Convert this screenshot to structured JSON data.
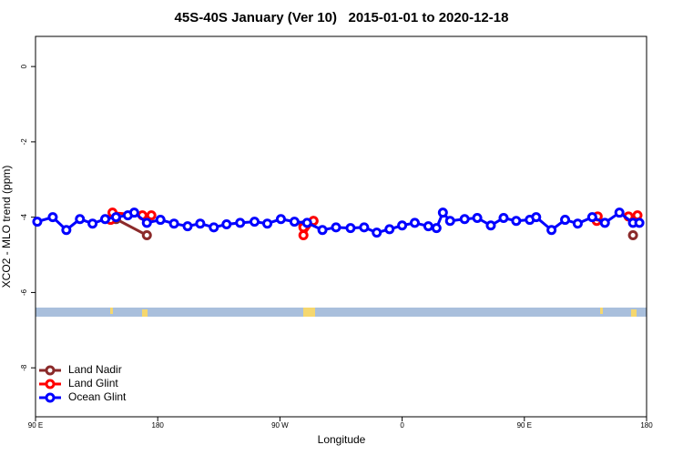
{
  "chart_data": {
    "type": "line",
    "title": "45S-40S January (Ver 10)   2015-01-01 to 2020-12-18",
    "x_label": "Longitude",
    "y_label": "XCO2 - MLO trend (ppm)",
    "xlim": [
      90,
      540
    ],
    "ylim": [
      -9.3,
      0.8
    ],
    "xticks": [
      {
        "value": 90,
        "label": "90 E"
      },
      {
        "value": 180,
        "label": "180"
      },
      {
        "value": 270,
        "label": "90 W"
      },
      {
        "value": 360,
        "label": "0"
      },
      {
        "value": 450,
        "label": "90 E"
      },
      {
        "value": 540,
        "label": "180"
      }
    ],
    "yticks": [
      0,
      -2,
      -4,
      -6,
      -8
    ],
    "legend": "bottom-left",
    "series": [
      {
        "name": "Land Nadir",
        "color": "#8b2a2a",
        "x": [
          149.3,
          172,
          null,
          287.3,
          294.7,
          null,
          530
        ],
        "values": [
          -4.05,
          -4.48,
          null,
          -4.22,
          -4.1,
          null,
          -4.48
        ]
      },
      {
        "name": "Land Glint",
        "color": "#ff0000",
        "x": [
          145.3,
          146.7,
          168.7,
          175.3,
          null,
          287.3,
          287.3,
          294.7,
          null,
          503.3,
          504,
          null,
          526.7,
          533.3
        ],
        "values": [
          -4.07,
          -3.88,
          -3.95,
          -3.95,
          null,
          -4.27,
          -4.48,
          -4.1,
          null,
          -4.1,
          -3.98,
          null,
          -3.98,
          -3.95
        ]
      },
      {
        "name": "Ocean Glint",
        "color": "#0000ff",
        "x": [
          91.3,
          102.7,
          112.7,
          122.7,
          132,
          141.3,
          149.3,
          158,
          162.7,
          172,
          182,
          192,
          202,
          211.3,
          221.3,
          230.7,
          240.7,
          251.3,
          260.7,
          270.7,
          280.7,
          290,
          301.3,
          311.3,
          322,
          332,
          341.3,
          350.7,
          360,
          369.3,
          379.3,
          385.3,
          390,
          395.3,
          406,
          415.3,
          425.3,
          434.7,
          444,
          454,
          458.7,
          470,
          480,
          489.3,
          500,
          509.3,
          520,
          530,
          534.7
        ],
        "values": [
          -4.12,
          -4.0,
          -4.34,
          -4.05,
          -4.17,
          -4.05,
          -4.0,
          -3.95,
          -3.88,
          -4.15,
          -4.07,
          -4.17,
          -4.24,
          -4.17,
          -4.27,
          -4.19,
          -4.15,
          -4.12,
          -4.17,
          -4.05,
          -4.12,
          -4.15,
          -4.34,
          -4.27,
          -4.29,
          -4.27,
          -4.41,
          -4.32,
          -4.22,
          -4.15,
          -4.24,
          -4.29,
          -3.88,
          -4.1,
          -4.05,
          -4.02,
          -4.22,
          -4.02,
          -4.1,
          -4.07,
          -4.0,
          -4.34,
          -4.07,
          -4.17,
          -4.0,
          -4.15,
          -3.88,
          -4.15,
          -4.15
        ]
      }
    ]
  }
}
